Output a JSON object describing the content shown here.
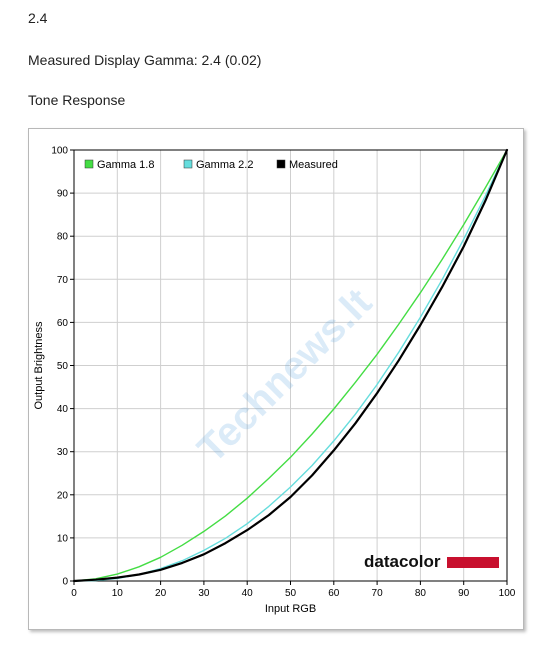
{
  "header": {
    "gamma_target": "2.4",
    "measured_gamma": "Measured Display Gamma: 2.4 (0.02)",
    "section_title": "Tone Response"
  },
  "watermark": {
    "text": "Technews.lt"
  },
  "brand": {
    "text": "datacolor",
    "bar_color": "#c8102e"
  },
  "chart_data": {
    "type": "line",
    "xlabel": "Input RGB",
    "ylabel": "Output Brightness",
    "xlim": [
      0,
      100
    ],
    "ylim": [
      0,
      100
    ],
    "xticks": [
      0,
      10,
      20,
      30,
      40,
      50,
      60,
      70,
      80,
      90,
      100
    ],
    "yticks": [
      0,
      10,
      20,
      30,
      40,
      50,
      60,
      70,
      80,
      90,
      100
    ],
    "grid": true,
    "legend_position": "top-left",
    "series": [
      {
        "name": "Gamma 1.8",
        "color": "#44dd44",
        "x": [
          0,
          5,
          10,
          15,
          20,
          25,
          30,
          35,
          40,
          45,
          50,
          55,
          60,
          65,
          70,
          75,
          80,
          85,
          90,
          95,
          100
        ],
        "y": [
          0,
          0.5,
          1.6,
          3.3,
          5.5,
          8.3,
          11.5,
          15.1,
          19.2,
          23.8,
          28.7,
          34.1,
          39.9,
          46.1,
          52.6,
          59.6,
          66.9,
          74.6,
          82.7,
          91.2,
          100
        ]
      },
      {
        "name": "Gamma 2.2",
        "color": "#66dddd",
        "x": [
          0,
          5,
          10,
          15,
          20,
          25,
          30,
          35,
          40,
          45,
          50,
          55,
          60,
          65,
          70,
          75,
          80,
          85,
          90,
          95,
          100
        ],
        "y": [
          0,
          0.1,
          0.6,
          1.5,
          2.9,
          4.7,
          7.1,
          9.9,
          13.3,
          17.3,
          21.8,
          26.8,
          32.5,
          38.7,
          45.6,
          53.1,
          61.2,
          69.9,
          79.3,
          89.3,
          100
        ]
      },
      {
        "name": "Measured",
        "color": "#000000",
        "x": [
          0,
          5,
          10,
          15,
          20,
          25,
          30,
          35,
          40,
          45,
          50,
          55,
          60,
          65,
          70,
          75,
          80,
          85,
          90,
          95,
          100
        ],
        "y": [
          0,
          0.3,
          0.8,
          1.5,
          2.6,
          4.2,
          6.2,
          8.8,
          11.8,
          15.3,
          19.5,
          24.5,
          30.3,
          36.6,
          43.6,
          51.2,
          59.4,
          68.2,
          77.6,
          88.2,
          100
        ]
      }
    ]
  }
}
